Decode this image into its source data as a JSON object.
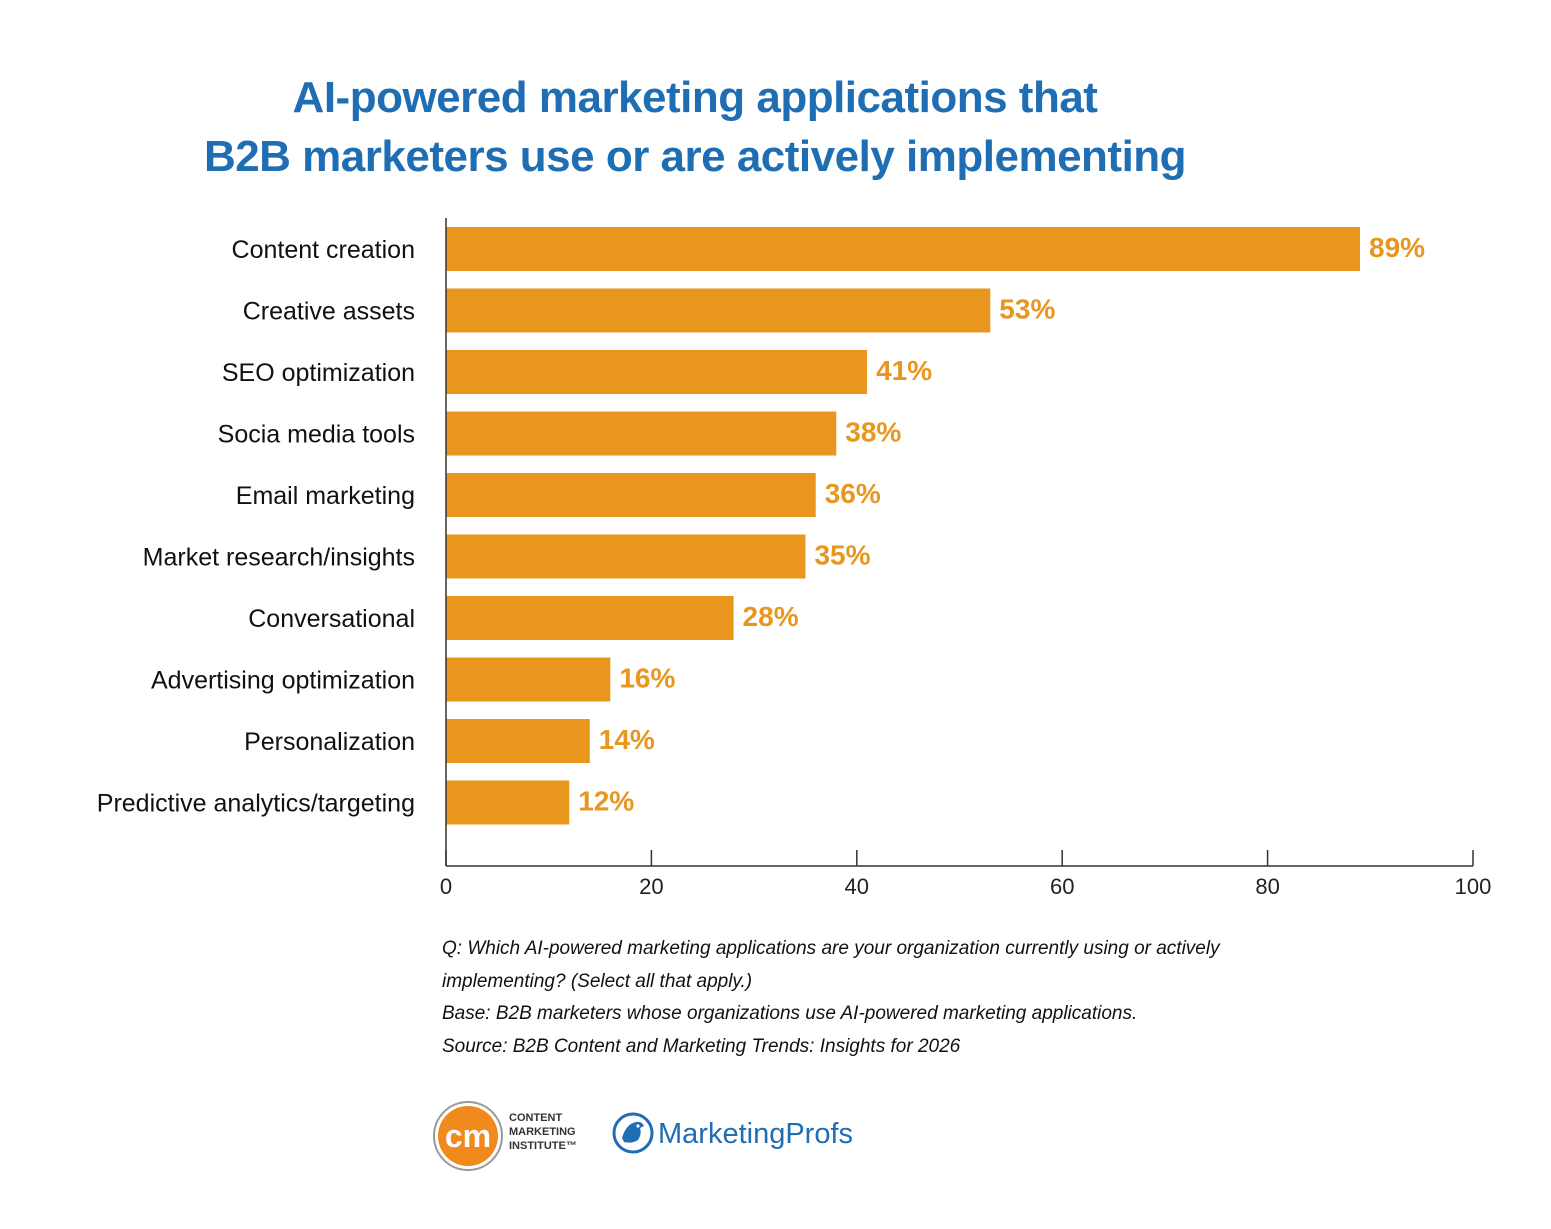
{
  "title_lines": [
    "AI-powered marketing applications that",
    "B2B marketers use or are actively implementing"
  ],
  "chart_data": {
    "type": "bar",
    "orientation": "horizontal",
    "title": "AI-powered marketing applications that B2B marketers use or are actively implementing",
    "categories": [
      "Content creation",
      "Creative assets",
      "SEO optimization",
      "Socia media tools",
      "Email marketing",
      "Market research/insights",
      "Conversational",
      "Advertising optimization",
      "Personalization",
      "Predictive analytics/targeting"
    ],
    "values": [
      89,
      53,
      41,
      38,
      36,
      35,
      28,
      16,
      14,
      12
    ],
    "value_labels": [
      "89%",
      "53%",
      "41%",
      "38%",
      "36%",
      "35%",
      "28%",
      "16%",
      "14%",
      "12%"
    ],
    "xlim": [
      0,
      100
    ],
    "xticks": [
      0,
      20,
      40,
      60,
      80,
      100
    ],
    "xtick_labels": [
      "0",
      "20",
      "40",
      "60",
      "80",
      "100"
    ],
    "xlabel": "",
    "ylabel": "",
    "grid": false,
    "legend": "none",
    "bar_color": "#e8961e",
    "label_color": "#e8961e"
  },
  "notes": [
    "Q: Which AI-powered marketing applications are your organization currently using or actively",
    "implementing? (Select all that apply.)",
    "Base: B2B marketers whose organizations use AI-powered marketing applications.",
    "Source: B2B Content and Marketing Trends: Insights for 2026"
  ],
  "logos": {
    "cmi": {
      "mark": "cm",
      "lines": [
        "CONTENT",
        "MARKETING",
        "INSTITUTE™"
      ],
      "color": "#f08a1d"
    },
    "mp": {
      "text": "MarketingProfs",
      "color": "#1f6db3"
    }
  }
}
